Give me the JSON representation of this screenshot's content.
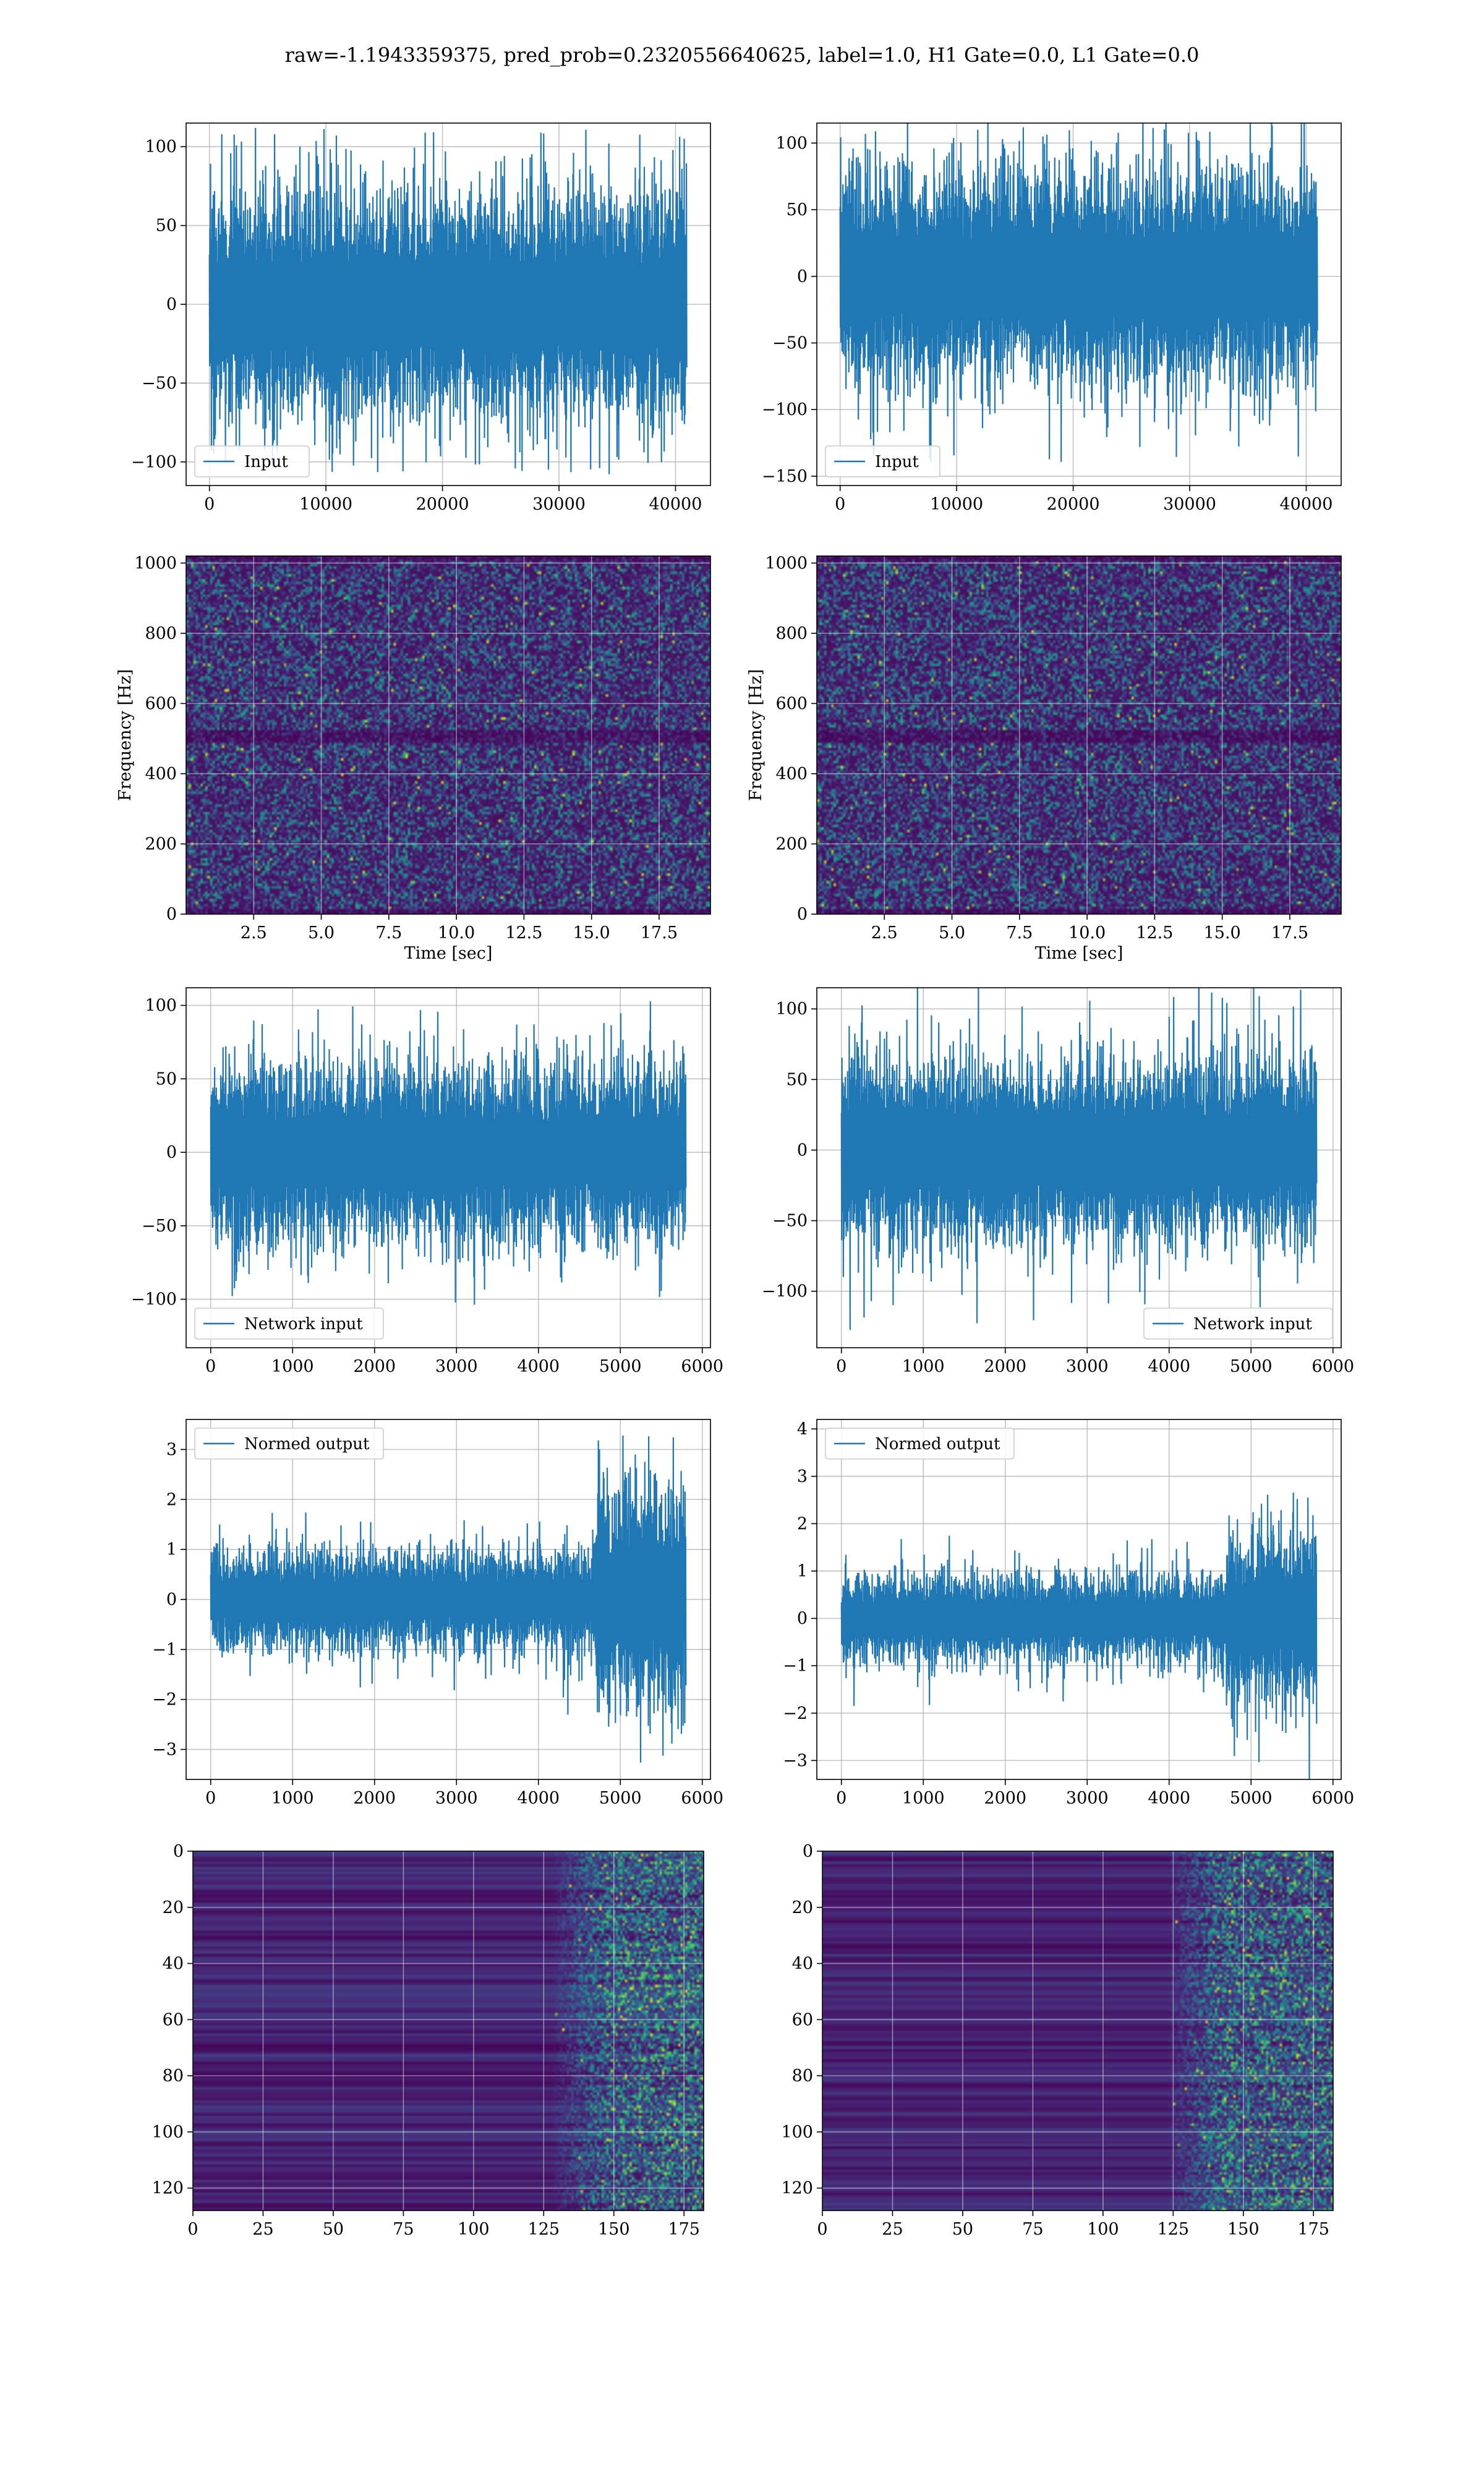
{
  "title": "raw=-1.1943359375, pred_prob=0.2320556640625, label=1.0, H1 Gate=0.0, L1 Gate=0.0",
  "colors": {
    "line": "#1f77b4",
    "viridis_dark": "#440154",
    "viridis_mid": "#21918c",
    "viridis_bright": "#fde725"
  },
  "chart_data": [
    {
      "id": "r1c1",
      "type": "line",
      "legend": "Input",
      "legend_loc": "lower-left",
      "xlim": [
        -2000,
        43000
      ],
      "ylim": [
        -115,
        115
      ],
      "xticks": [
        0,
        10000,
        20000,
        30000,
        40000
      ],
      "xtick_labels": [
        "0",
        "10000",
        "20000",
        "30000",
        "40000"
      ],
      "yticks": [
        -100,
        -50,
        0,
        50,
        100
      ],
      "ytick_labels": [
        "−100",
        "−50",
        "0",
        "50",
        "100"
      ],
      "xlabel": "",
      "ylabel": "",
      "grid": true,
      "signal": {
        "x_range": [
          0,
          40960
        ],
        "band": 55,
        "peak": 112,
        "segments": [
          {
            "from": 0,
            "to": 40960,
            "scale": 1.0
          }
        ]
      }
    },
    {
      "id": "r1c2",
      "type": "line",
      "legend": "Input",
      "legend_loc": "lower-left",
      "xlim": [
        -2000,
        43000
      ],
      "ylim": [
        -157,
        115
      ],
      "xticks": [
        0,
        10000,
        20000,
        30000,
        40000
      ],
      "xtick_labels": [
        "0",
        "10000",
        "20000",
        "30000",
        "40000"
      ],
      "yticks": [
        -150,
        -100,
        -50,
        0,
        50,
        100
      ],
      "ytick_labels": [
        "−150",
        "−100",
        "−50",
        "0",
        "50",
        "100"
      ],
      "xlabel": "",
      "ylabel": "",
      "grid": true,
      "signal": {
        "x_range": [
          0,
          40960
        ],
        "band": 60,
        "peak": 140,
        "segments": [
          {
            "from": 0,
            "to": 40960,
            "scale": 1.0
          }
        ]
      }
    },
    {
      "id": "r2c1",
      "type": "heatmap",
      "xlim": [
        0,
        19.4
      ],
      "ylim": [
        0,
        1020
      ],
      "xticks": [
        2.5,
        5.0,
        7.5,
        10.0,
        12.5,
        15.0,
        17.5
      ],
      "xtick_labels": [
        "2.5",
        "5.0",
        "7.5",
        "10.0",
        "12.5",
        "15.0",
        "17.5"
      ],
      "yticks": [
        0,
        200,
        400,
        600,
        800,
        1000
      ],
      "ytick_labels": [
        "0",
        "200",
        "400",
        "600",
        "800",
        "1000"
      ],
      "xlabel": "Time [sec]",
      "ylabel": "Frequency [Hz]",
      "grid": true,
      "colormap": "viridis",
      "style": "noise"
    },
    {
      "id": "r2c2",
      "type": "heatmap",
      "xlim": [
        0,
        19.4
      ],
      "ylim": [
        0,
        1020
      ],
      "xticks": [
        2.5,
        5.0,
        7.5,
        10.0,
        12.5,
        15.0,
        17.5
      ],
      "xtick_labels": [
        "2.5",
        "5.0",
        "7.5",
        "10.0",
        "12.5",
        "15.0",
        "17.5"
      ],
      "yticks": [
        0,
        200,
        400,
        600,
        800,
        1000
      ],
      "ytick_labels": [
        "0",
        "200",
        "400",
        "600",
        "800",
        "1000"
      ],
      "xlabel": "Time [sec]",
      "ylabel": "Frequency [Hz]",
      "grid": true,
      "colormap": "viridis",
      "style": "noise"
    },
    {
      "id": "r3c1",
      "type": "line",
      "legend": "Network input",
      "legend_loc": "lower-left",
      "xlim": [
        -300,
        6100
      ],
      "ylim": [
        -133,
        112
      ],
      "xticks": [
        0,
        1000,
        2000,
        3000,
        4000,
        5000,
        6000
      ],
      "xtick_labels": [
        "0",
        "1000",
        "2000",
        "3000",
        "4000",
        "5000",
        "6000"
      ],
      "yticks": [
        -100,
        -50,
        0,
        50,
        100
      ],
      "ytick_labels": [
        "−100",
        "−50",
        "0",
        "50",
        "100"
      ],
      "xlabel": "",
      "ylabel": "",
      "grid": true,
      "signal": {
        "x_range": [
          0,
          5800
        ],
        "band": 45,
        "peak": 130,
        "segments": [
          {
            "from": 0,
            "to": 5800,
            "scale": 1.0
          }
        ]
      }
    },
    {
      "id": "r3c2",
      "type": "line",
      "legend": "Network input",
      "legend_loc": "lower-right",
      "xlim": [
        -300,
        6100
      ],
      "ylim": [
        -140,
        115
      ],
      "xticks": [
        0,
        1000,
        2000,
        3000,
        4000,
        5000,
        6000
      ],
      "xtick_labels": [
        "0",
        "1000",
        "2000",
        "3000",
        "4000",
        "5000",
        "6000"
      ],
      "yticks": [
        -100,
        -50,
        0,
        50,
        100
      ],
      "ytick_labels": [
        "−100",
        "−50",
        "0",
        "50",
        "100"
      ],
      "xlabel": "",
      "ylabel": "",
      "grid": true,
      "signal": {
        "x_range": [
          0,
          5800
        ],
        "band": 50,
        "peak": 135,
        "segments": [
          {
            "from": 0,
            "to": 5800,
            "scale": 1.0
          }
        ]
      }
    },
    {
      "id": "r4c1",
      "type": "line",
      "legend": "Normed output",
      "legend_loc": "upper-left",
      "xlim": [
        -300,
        6100
      ],
      "ylim": [
        -3.6,
        3.6
      ],
      "xticks": [
        0,
        1000,
        2000,
        3000,
        4000,
        5000,
        6000
      ],
      "xtick_labels": [
        "0",
        "1000",
        "2000",
        "3000",
        "4000",
        "5000",
        "6000"
      ],
      "yticks": [
        -3,
        -2,
        -1,
        0,
        1,
        2,
        3
      ],
      "ytick_labels": [
        "−3",
        "−2",
        "−1",
        "0",
        "1",
        "2",
        "3"
      ],
      "xlabel": "",
      "ylabel": "",
      "grid": true,
      "signal": {
        "x_range": [
          0,
          5800
        ],
        "band": 0.75,
        "peak": 3.3,
        "segments": [
          {
            "from": 0,
            "to": 4700,
            "scale": 1.0
          },
          {
            "from": 4700,
            "to": 5800,
            "scale": 2.2
          }
        ]
      }
    },
    {
      "id": "r4c2",
      "type": "line",
      "legend": "Normed output",
      "legend_loc": "upper-left",
      "xlim": [
        -300,
        6100
      ],
      "ylim": [
        -3.4,
        4.2
      ],
      "xticks": [
        0,
        1000,
        2000,
        3000,
        4000,
        5000,
        6000
      ],
      "xtick_labels": [
        "0",
        "1000",
        "2000",
        "3000",
        "4000",
        "5000",
        "6000"
      ],
      "yticks": [
        -3,
        -2,
        -1,
        0,
        1,
        2,
        3,
        4
      ],
      "ytick_labels": [
        "−3",
        "−2",
        "−1",
        "0",
        "1",
        "2",
        "3",
        "4"
      ],
      "xlabel": "",
      "ylabel": "",
      "grid": true,
      "signal": {
        "x_range": [
          0,
          5800
        ],
        "band": 0.7,
        "peak": 3.8,
        "segments": [
          {
            "from": 0,
            "to": 4700,
            "scale": 1.0
          },
          {
            "from": 4700,
            "to": 5800,
            "scale": 2.0
          }
        ]
      }
    },
    {
      "id": "r5c1",
      "type": "heatmap",
      "xlim": [
        0,
        182
      ],
      "ylim": [
        128,
        0
      ],
      "xticks": [
        0,
        25,
        50,
        75,
        100,
        125,
        150,
        175
      ],
      "xtick_labels": [
        "0",
        "25",
        "50",
        "75",
        "100",
        "125",
        "150",
        "175"
      ],
      "yticks": [
        0,
        20,
        40,
        60,
        80,
        100,
        120
      ],
      "ytick_labels": [
        "0",
        "20",
        "40",
        "60",
        "80",
        "100",
        "120"
      ],
      "xlabel": "",
      "ylabel": "",
      "grid": true,
      "colormap": "viridis",
      "style": "bands",
      "active_from": 140
    },
    {
      "id": "r5c2",
      "type": "heatmap",
      "xlim": [
        0,
        182
      ],
      "ylim": [
        128,
        0
      ],
      "xticks": [
        0,
        25,
        50,
        75,
        100,
        125,
        150,
        175
      ],
      "xtick_labels": [
        "0",
        "25",
        "50",
        "75",
        "100",
        "125",
        "150",
        "175"
      ],
      "yticks": [
        0,
        20,
        40,
        60,
        80,
        100,
        120
      ],
      "ytick_labels": [
        "0",
        "20",
        "40",
        "60",
        "80",
        "100",
        "120"
      ],
      "xlabel": "",
      "ylabel": "",
      "grid": true,
      "colormap": "viridis",
      "style": "bands",
      "active_from": 135
    }
  ]
}
